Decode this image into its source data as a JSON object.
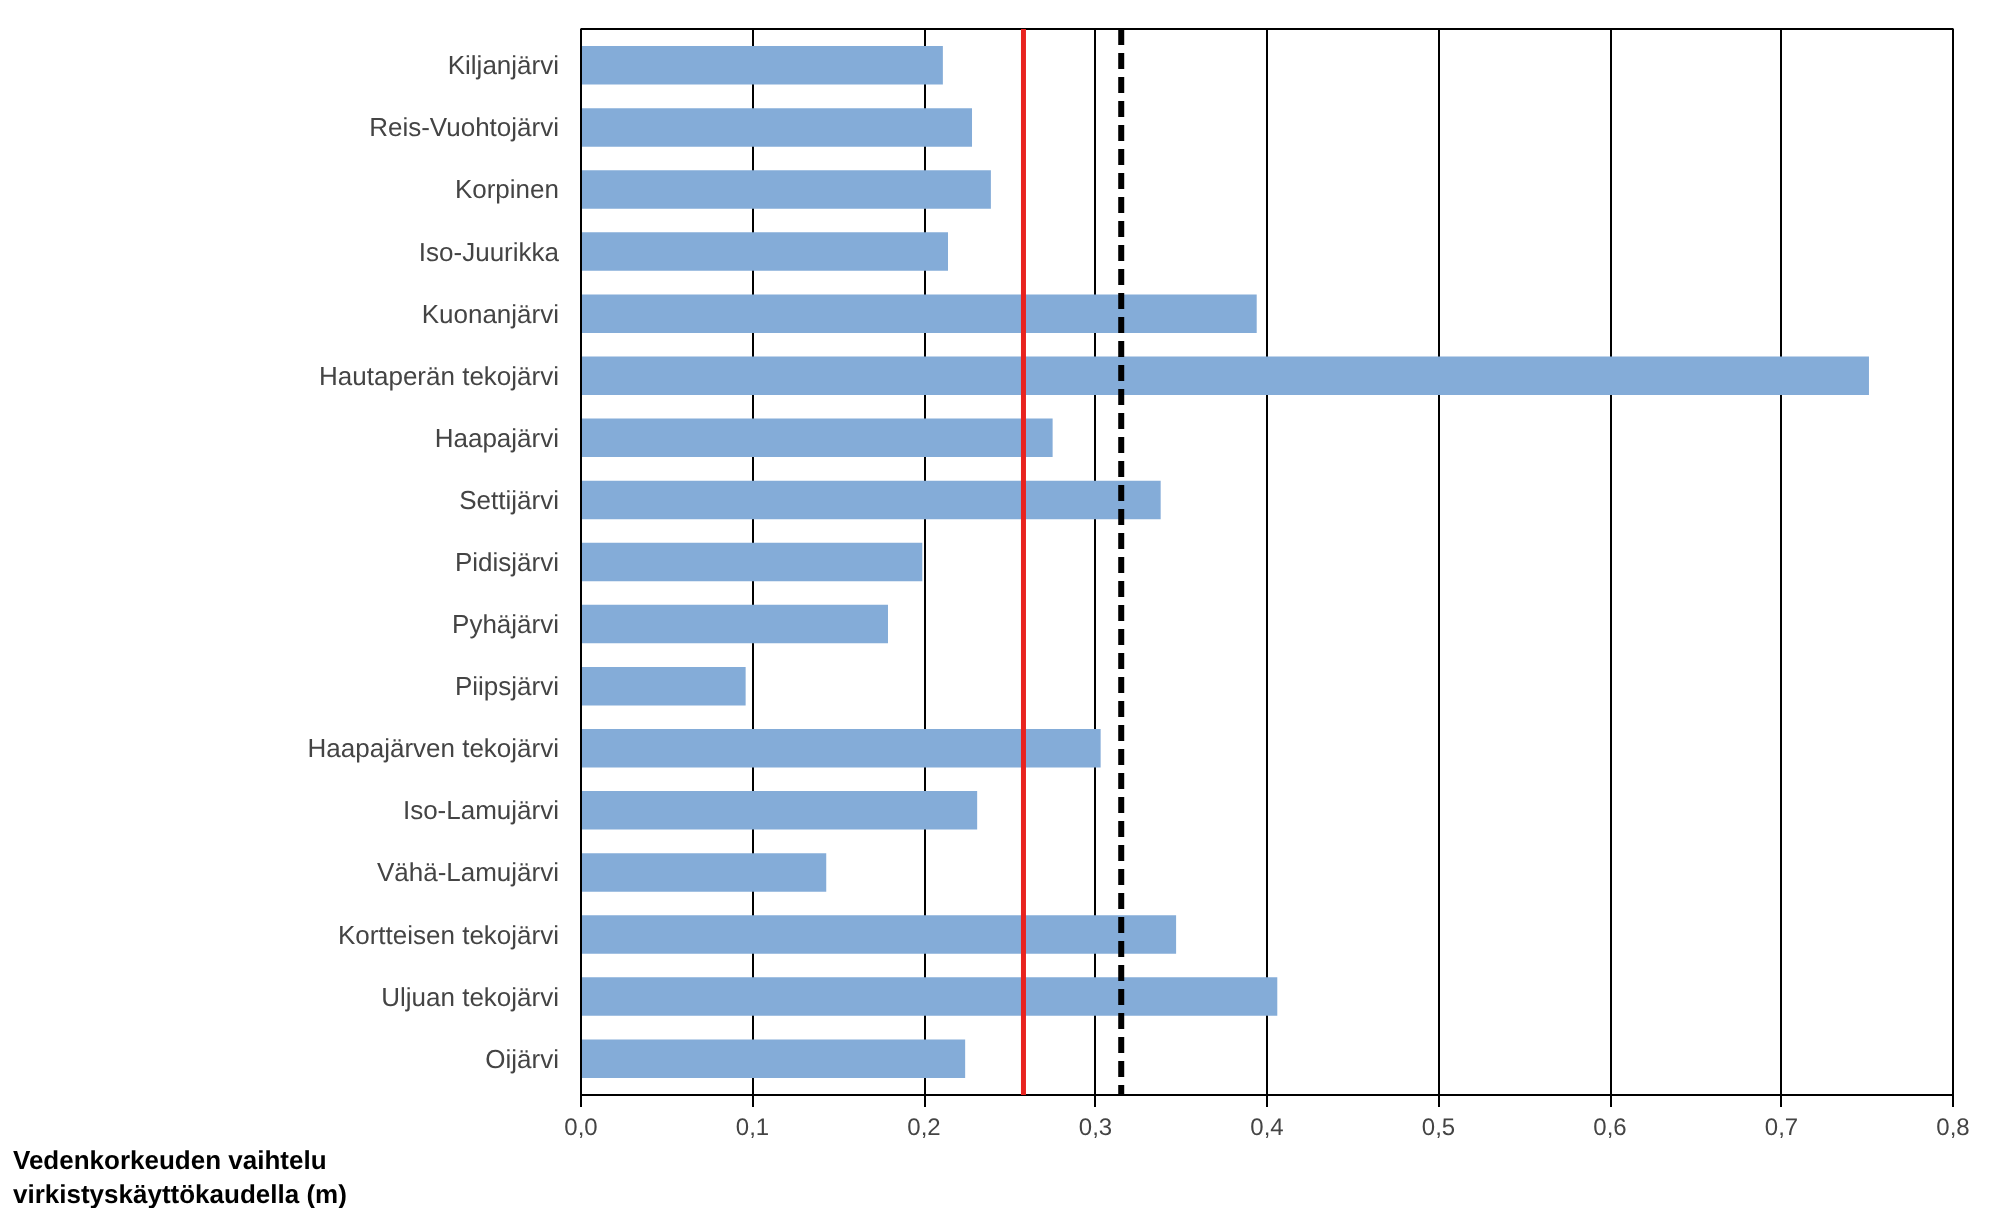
{
  "chart_data": {
    "type": "bar",
    "orientation": "horizontal",
    "xlabel": "Vedenkorkeuden vaihtelu virkistyskäyttökaudella (m)",
    "categories": [
      "Kiljanjärvi",
      "Reis-Vuohtojärvi",
      "Korpinen",
      "Iso-Juurikka",
      "Kuonanjärvi",
      "Hautaperän tekojärvi",
      "Haapajärvi",
      "Settijärvi",
      "Pidisjärvi",
      "Pyhäjärvi",
      "Piipsjärvi",
      "Haapajärven tekojärvi",
      "Iso-Lamujärvi",
      "Vähä-Lamujärvi",
      "Kortteisen tekojärvi",
      "Uljuan tekojärvi",
      "Oijärvi"
    ],
    "values": [
      0.211,
      0.228,
      0.239,
      0.214,
      0.394,
      0.751,
      0.275,
      0.338,
      0.199,
      0.179,
      0.096,
      0.303,
      0.231,
      0.143,
      0.347,
      0.406,
      0.224
    ],
    "color": "#84acd8",
    "xlim": [
      0,
      0.8
    ],
    "xticks": [
      {
        "value": 0,
        "label": "0,0"
      },
      {
        "value": 0.1,
        "label": "0,1"
      },
      {
        "value": 0.2,
        "label": "0,2"
      },
      {
        "value": 0.3,
        "label": "0,3"
      },
      {
        "value": 0.4,
        "label": "0,4"
      },
      {
        "value": 0.5,
        "label": "0,5"
      },
      {
        "value": 0.6,
        "label": "0,6"
      },
      {
        "value": 0.7,
        "label": "0,7"
      },
      {
        "value": 0.8,
        "label": "0,8"
      }
    ],
    "grid": "x",
    "ref_lines": [
      {
        "axis": "x",
        "value": 0.258,
        "color": "#e8231f",
        "line_style": "solid"
      },
      {
        "axis": "x",
        "value": 0.315,
        "color": "#000000",
        "line_style": "dashed"
      }
    ]
  }
}
